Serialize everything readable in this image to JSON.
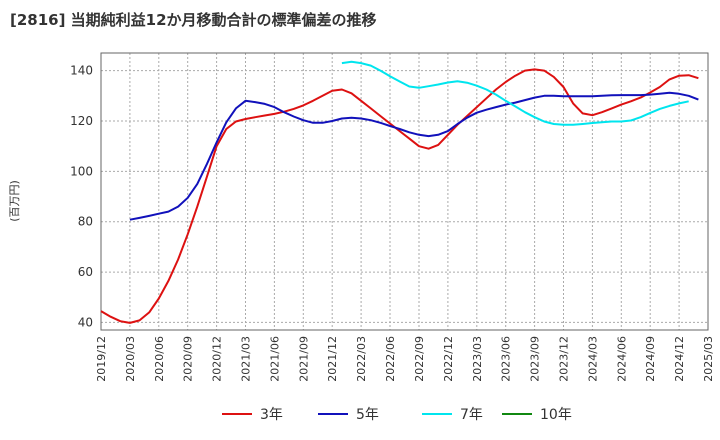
{
  "chart_data": {
    "type": "line",
    "title": "[2816]  当期純利益12か月移動合計の標準偏差の推移",
    "ylabel": "(百万円)",
    "xlabel": "",
    "ylim": [
      37,
      147
    ],
    "yticks": [
      40,
      60,
      80,
      100,
      120,
      140
    ],
    "x_range": [
      "2019/12",
      "2025/03"
    ],
    "xticks": [
      "2019/12",
      "2020/03",
      "2020/06",
      "2020/09",
      "2020/12",
      "2021/03",
      "2021/06",
      "2021/09",
      "2021/12",
      "2022/03",
      "2022/06",
      "2022/09",
      "2022/12",
      "2023/03",
      "2023/06",
      "2023/09",
      "2023/12",
      "2024/03",
      "2024/06",
      "2024/09",
      "2024/12",
      "2025/03"
    ],
    "grid": true,
    "legend": "bottom",
    "series": [
      {
        "name": "3年",
        "color": "#dd1111",
        "start": "2019/12",
        "values": [
          44.5,
          42.3,
          40.5,
          39.8,
          40.8,
          44.0,
          49.5,
          56.5,
          65.0,
          75.0,
          86.0,
          98.0,
          110.0,
          116.8,
          119.8,
          120.8,
          121.5,
          122.2,
          122.8,
          123.7,
          124.8,
          126.2,
          128.0,
          130.0,
          132.0,
          132.5,
          131.0,
          128.0,
          125.0,
          122.0,
          119.0,
          116.0,
          113.0,
          110.0,
          109.0,
          110.5,
          114.5,
          118.5,
          122.0,
          125.5,
          129.0,
          132.5,
          135.5,
          138.0,
          140.0,
          140.5,
          140.0,
          137.5,
          133.5,
          127.0,
          123.0,
          122.3,
          123.5,
          125.0,
          126.5,
          127.8,
          129.3,
          131.3,
          133.5,
          136.5,
          138.0,
          138.2,
          137.0
        ]
      },
      {
        "name": "5年",
        "color": "#1111bb",
        "start": "2020/03",
        "values": [
          80.8,
          81.5,
          82.3,
          83.2,
          84.0,
          86.0,
          89.5,
          95.0,
          103.0,
          111.5,
          119.5,
          125.0,
          128.0,
          127.5,
          126.8,
          125.5,
          123.5,
          121.8,
          120.3,
          119.3,
          119.3,
          120.0,
          121.0,
          121.3,
          121.0,
          120.3,
          119.3,
          118.0,
          116.8,
          115.5,
          114.5,
          114.0,
          114.5,
          116.0,
          118.8,
          121.3,
          123.3,
          124.5,
          125.5,
          126.5,
          127.3,
          128.3,
          129.3,
          130.0,
          130.0,
          129.8,
          129.8,
          129.8,
          129.8,
          130.0,
          130.2,
          130.3,
          130.3,
          130.3,
          130.5,
          130.8,
          131.2,
          130.8,
          130.0,
          128.5
        ]
      },
      {
        "name": "7年",
        "color": "#00e5ee",
        "start": "2022/01",
        "values": [
          143.0,
          143.5,
          143.0,
          142.0,
          140.0,
          137.8,
          135.7,
          133.7,
          133.2,
          133.8,
          134.5,
          135.3,
          135.8,
          135.2,
          134.0,
          132.5,
          130.5,
          128.0,
          125.8,
          123.5,
          121.5,
          119.8,
          118.8,
          118.5,
          118.5,
          118.8,
          119.2,
          119.5,
          119.8,
          119.8,
          120.2,
          121.5,
          123.2,
          124.8,
          126.0,
          127.0,
          127.8
        ]
      },
      {
        "name": "10年",
        "color": "#118811",
        "start": "2019/12",
        "values": []
      }
    ]
  }
}
